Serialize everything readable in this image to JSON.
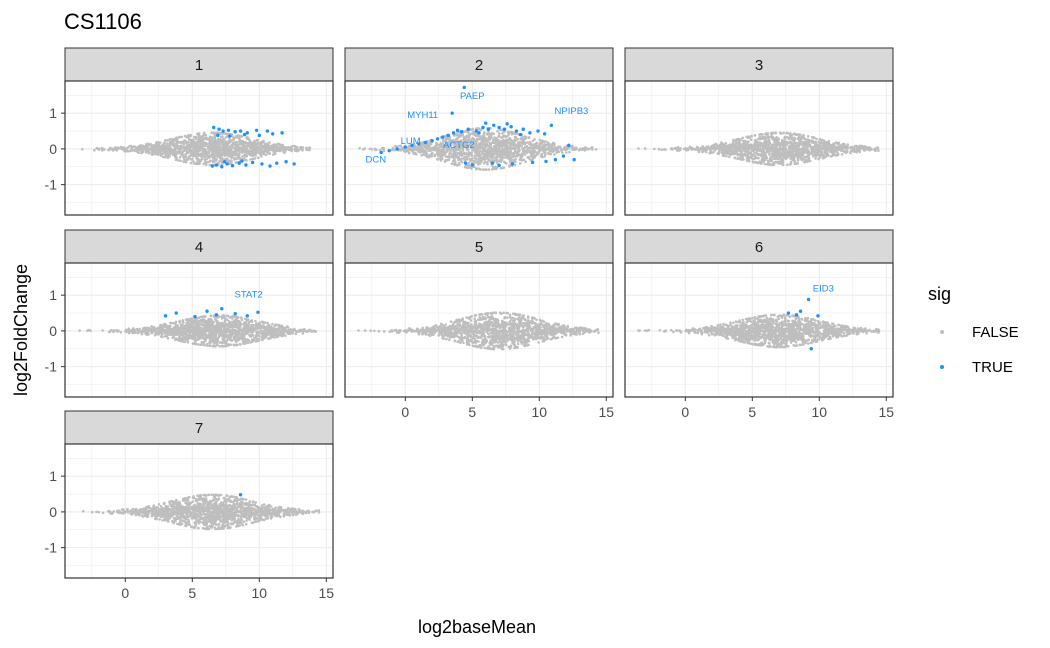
{
  "title": "CS1106",
  "chart_data": {
    "type": "scatter",
    "facets": [
      "1",
      "2",
      "3",
      "4",
      "5",
      "6",
      "7"
    ],
    "xlabel": "log2baseMean",
    "ylabel": "log2FoldChange",
    "xlim": [
      -4.5,
      15.5
    ],
    "ylim": [
      -1.85,
      1.9
    ],
    "x_ticks": [
      0,
      5,
      10,
      15
    ],
    "y_ticks": [
      1,
      0,
      -1
    ],
    "x_tick_labels": [
      "0",
      "5",
      "10",
      "15"
    ],
    "y_tick_labels": [
      "1",
      "0",
      "-1"
    ],
    "grid": true,
    "colors": {
      "FALSE": "#bebebe",
      "TRUE": "#1e90ff"
    },
    "legend": {
      "title": "sig",
      "position": "right",
      "entries": [
        "FALSE",
        "TRUE"
      ]
    },
    "nonsig_cloud": [
      {
        "facet": "1",
        "x_min": -3.5,
        "x_max": 14.2,
        "peak_x": 6.5,
        "peak_spread": 0.42
      },
      {
        "facet": "2",
        "x_min": -3.5,
        "x_max": 14.8,
        "peak_x": 6.0,
        "peak_spread": 0.55
      },
      {
        "facet": "3",
        "x_min": -3.5,
        "x_max": 14.5,
        "peak_x": 7.0,
        "peak_spread": 0.42
      },
      {
        "facet": "4",
        "x_min": -3.5,
        "x_max": 14.2,
        "peak_x": 7.0,
        "peak_spread": 0.4
      },
      {
        "facet": "5",
        "x_min": -3.5,
        "x_max": 14.5,
        "peak_x": 7.0,
        "peak_spread": 0.48
      },
      {
        "facet": "6",
        "x_min": -3.5,
        "x_max": 14.5,
        "peak_x": 7.0,
        "peak_spread": 0.42
      },
      {
        "facet": "7",
        "x_min": -3.5,
        "x_max": 14.5,
        "peak_x": 6.5,
        "peak_spread": 0.45
      }
    ],
    "sig_points": [
      {
        "facet": "1",
        "x": 6.6,
        "y": 0.6
      },
      {
        "facet": "1",
        "x": 7.0,
        "y": 0.55
      },
      {
        "facet": "1",
        "x": 7.3,
        "y": 0.5
      },
      {
        "facet": "1",
        "x": 7.7,
        "y": 0.52
      },
      {
        "facet": "1",
        "x": 8.2,
        "y": 0.48
      },
      {
        "facet": "1",
        "x": 8.6,
        "y": 0.5
      },
      {
        "facet": "1",
        "x": 9.1,
        "y": 0.45
      },
      {
        "facet": "1",
        "x": 9.8,
        "y": 0.52
      },
      {
        "facet": "1",
        "x": 10.6,
        "y": 0.5
      },
      {
        "facet": "1",
        "x": 11.0,
        "y": 0.42
      },
      {
        "facet": "1",
        "x": 6.9,
        "y": 0.38
      },
      {
        "facet": "1",
        "x": 7.8,
        "y": 0.36
      },
      {
        "facet": "1",
        "x": 8.9,
        "y": 0.4
      },
      {
        "facet": "1",
        "x": 10.0,
        "y": 0.38
      },
      {
        "facet": "1",
        "x": 11.7,
        "y": 0.45
      },
      {
        "facet": "1",
        "x": 6.5,
        "y": -0.48
      },
      {
        "facet": "1",
        "x": 6.8,
        "y": -0.45
      },
      {
        "facet": "1",
        "x": 7.2,
        "y": -0.5
      },
      {
        "facet": "1",
        "x": 7.6,
        "y": -0.42
      },
      {
        "facet": "1",
        "x": 8.0,
        "y": -0.47
      },
      {
        "facet": "1",
        "x": 8.5,
        "y": -0.4
      },
      {
        "facet": "1",
        "x": 9.0,
        "y": -0.45
      },
      {
        "facet": "1",
        "x": 9.5,
        "y": -0.38
      },
      {
        "facet": "1",
        "x": 10.2,
        "y": -0.42
      },
      {
        "facet": "1",
        "x": 10.8,
        "y": -0.48
      },
      {
        "facet": "1",
        "x": 11.3,
        "y": -0.4
      },
      {
        "facet": "1",
        "x": 12.0,
        "y": -0.36
      },
      {
        "facet": "1",
        "x": 12.6,
        "y": -0.42
      },
      {
        "facet": "1",
        "x": 7.4,
        "y": -0.36
      },
      {
        "facet": "1",
        "x": 8.7,
        "y": -0.34
      },
      {
        "facet": "2",
        "x": -1.8,
        "y": -0.1
      },
      {
        "facet": "2",
        "x": -1.2,
        "y": -0.05
      },
      {
        "facet": "2",
        "x": -0.6,
        "y": 0.0
      },
      {
        "facet": "2",
        "x": 0.0,
        "y": 0.05
      },
      {
        "facet": "2",
        "x": 0.5,
        "y": 0.1
      },
      {
        "facet": "2",
        "x": 1.0,
        "y": 0.14
      },
      {
        "facet": "2",
        "x": 1.5,
        "y": 0.18
      },
      {
        "facet": "2",
        "x": 2.0,
        "y": 0.23
      },
      {
        "facet": "2",
        "x": 2.4,
        "y": 0.28
      },
      {
        "facet": "2",
        "x": 2.8,
        "y": 0.33
      },
      {
        "facet": "2",
        "x": 3.2,
        "y": 0.38
      },
      {
        "facet": "2",
        "x": 3.6,
        "y": 0.45
      },
      {
        "facet": "2",
        "x": 3.9,
        "y": 0.52
      },
      {
        "facet": "2",
        "x": 3.5,
        "y": 1.0
      },
      {
        "facet": "2",
        "x": 4.4,
        "y": 1.72
      },
      {
        "facet": "2",
        "x": 4.7,
        "y": 0.55
      },
      {
        "facet": "2",
        "x": 5.3,
        "y": 0.5
      },
      {
        "facet": "2",
        "x": 5.8,
        "y": 0.6
      },
      {
        "facet": "2",
        "x": 6.2,
        "y": 0.55
      },
      {
        "facet": "2",
        "x": 6.6,
        "y": 0.66
      },
      {
        "facet": "2",
        "x": 7.0,
        "y": 0.6
      },
      {
        "facet": "2",
        "x": 7.4,
        "y": 0.55
      },
      {
        "facet": "2",
        "x": 7.9,
        "y": 0.62
      },
      {
        "facet": "2",
        "x": 8.3,
        "y": 0.5
      },
      {
        "facet": "2",
        "x": 8.8,
        "y": 0.55
      },
      {
        "facet": "2",
        "x": 9.3,
        "y": 0.45
      },
      {
        "facet": "2",
        "x": 9.9,
        "y": 0.5
      },
      {
        "facet": "2",
        "x": 10.4,
        "y": 0.42
      },
      {
        "facet": "2",
        "x": 10.9,
        "y": 0.66
      },
      {
        "facet": "2",
        "x": 6.0,
        "y": 0.72
      },
      {
        "facet": "2",
        "x": 7.6,
        "y": 0.7
      },
      {
        "facet": "2",
        "x": 8.6,
        "y": 0.4
      },
      {
        "facet": "2",
        "x": 11.8,
        "y": -0.2
      },
      {
        "facet": "2",
        "x": 12.6,
        "y": -0.3
      },
      {
        "facet": "2",
        "x": 12.2,
        "y": 0.1
      },
      {
        "facet": "2",
        "x": 9.5,
        "y": -0.38
      },
      {
        "facet": "2",
        "x": 8.0,
        "y": -0.42
      },
      {
        "facet": "2",
        "x": 7.0,
        "y": -0.46
      },
      {
        "facet": "2",
        "x": 6.5,
        "y": -0.4
      },
      {
        "facet": "2",
        "x": 5.0,
        "y": -0.45
      },
      {
        "facet": "2",
        "x": 4.5,
        "y": -0.4
      },
      {
        "facet": "2",
        "x": 10.5,
        "y": -0.35
      },
      {
        "facet": "2",
        "x": 11.2,
        "y": -0.3
      },
      {
        "facet": "2",
        "x": 5.5,
        "y": 0.45
      },
      {
        "facet": "2",
        "x": 4.2,
        "y": 0.48
      },
      {
        "facet": "4",
        "x": 3.0,
        "y": 0.42
      },
      {
        "facet": "4",
        "x": 3.8,
        "y": 0.5
      },
      {
        "facet": "4",
        "x": 5.2,
        "y": 0.4
      },
      {
        "facet": "4",
        "x": 6.1,
        "y": 0.55
      },
      {
        "facet": "4",
        "x": 6.8,
        "y": 0.45
      },
      {
        "facet": "4",
        "x": 7.2,
        "y": 0.62
      },
      {
        "facet": "4",
        "x": 8.2,
        "y": 0.48
      },
      {
        "facet": "4",
        "x": 9.1,
        "y": 0.42
      },
      {
        "facet": "4",
        "x": 9.9,
        "y": 0.52
      },
      {
        "facet": "6",
        "x": 7.7,
        "y": 0.5
      },
      {
        "facet": "6",
        "x": 8.3,
        "y": 0.45
      },
      {
        "facet": "6",
        "x": 8.6,
        "y": 0.55
      },
      {
        "facet": "6",
        "x": 9.2,
        "y": 0.88
      },
      {
        "facet": "6",
        "x": 9.9,
        "y": 0.42
      },
      {
        "facet": "6",
        "x": 9.4,
        "y": -0.5
      },
      {
        "facet": "7",
        "x": 8.6,
        "y": 0.48
      }
    ],
    "annotations": [
      {
        "facet": "2",
        "text": "PAEP",
        "x": 5.0,
        "y": 1.4
      },
      {
        "facet": "2",
        "text": "MYH11",
        "x": 1.3,
        "y": 0.86
      },
      {
        "facet": "2",
        "text": "NPIPB3",
        "x": 12.4,
        "y": 0.97
      },
      {
        "facet": "2",
        "text": "LUM",
        "x": 0.4,
        "y": 0.13
      },
      {
        "facet": "2",
        "text": "ACTG2",
        "x": 4.0,
        "y": 0.03
      },
      {
        "facet": "2",
        "text": "DCN",
        "x": -2.2,
        "y": -0.38
      },
      {
        "facet": "4",
        "text": "STAT2",
        "x": 9.2,
        "y": 0.93
      },
      {
        "facet": "6",
        "text": "EID3",
        "x": 10.3,
        "y": 1.1
      }
    ]
  }
}
